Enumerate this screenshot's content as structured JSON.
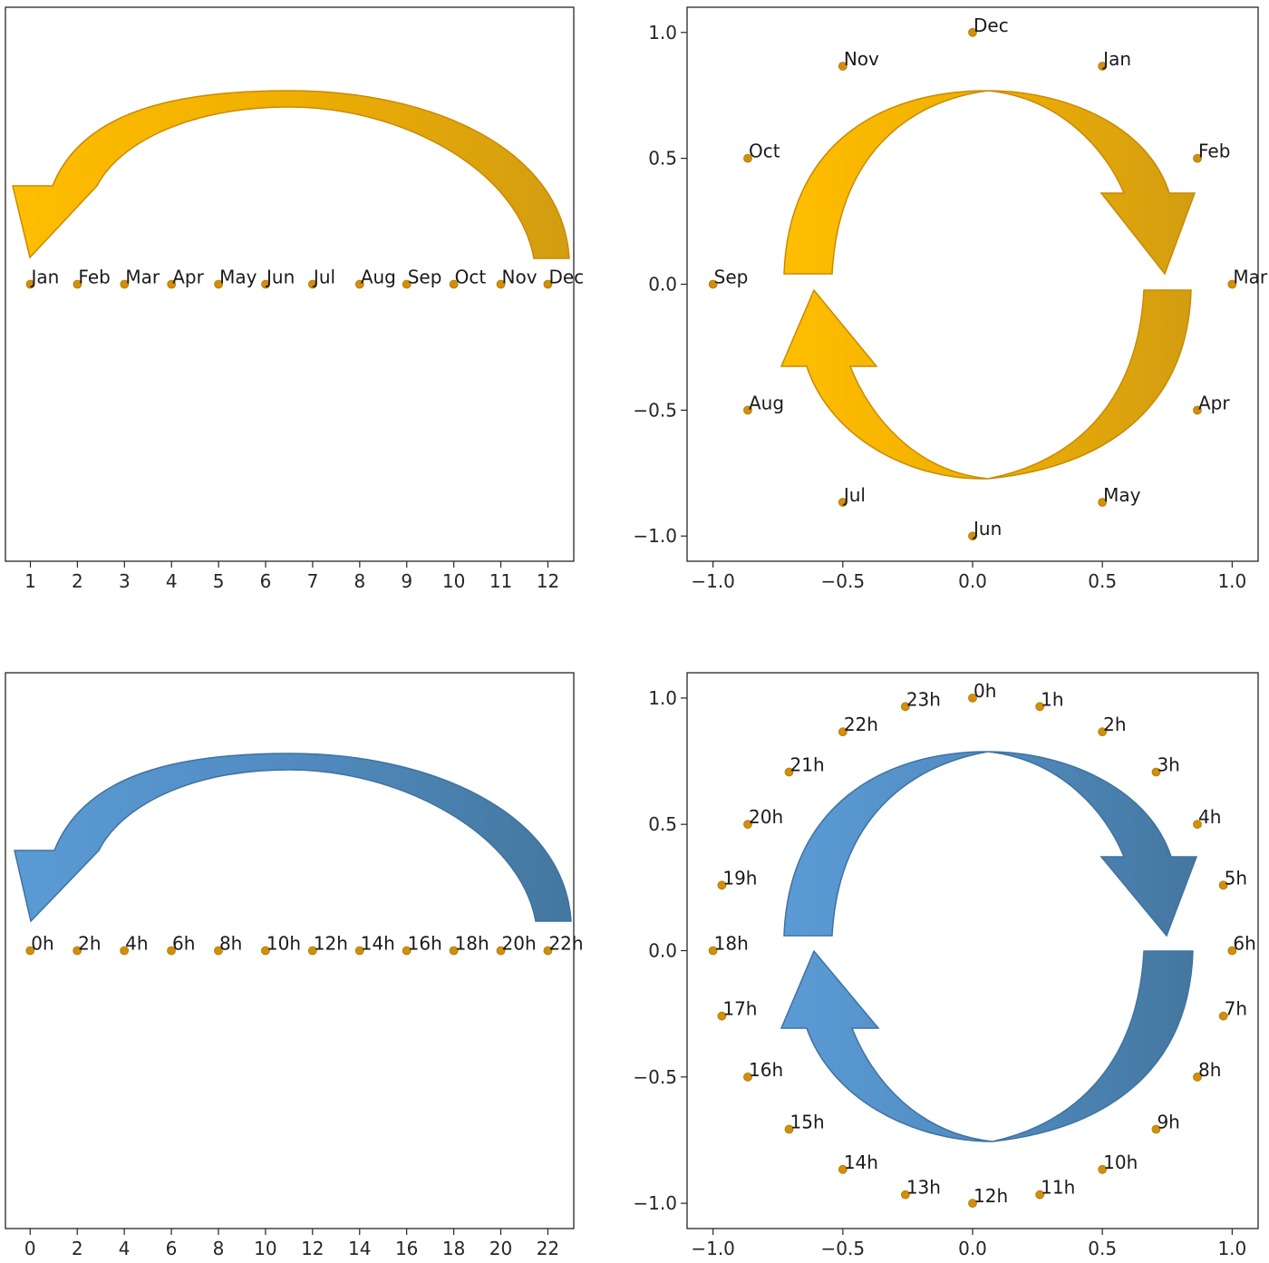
{
  "colors": {
    "point": "#d18f0b",
    "point_edge": "#b07a08",
    "gold_light": "#ffbe00",
    "gold_dark": "#d39d12",
    "gold_stroke": "#c98a00",
    "blue_light": "#5b9bd5",
    "blue_dark": "#44779f",
    "blue_stroke": "#3f72a0"
  },
  "chart_data": [
    {
      "type": "scatter",
      "panel": "top-left",
      "title": "",
      "xlabel": "",
      "ylabel": "",
      "xlim": [
        0.47,
        12.55
      ],
      "ylim": [
        -1.1,
        1.1
      ],
      "x_ticks": [
        "1",
        "2",
        "3",
        "4",
        "5",
        "6",
        "7",
        "8",
        "9",
        "10",
        "11",
        "12"
      ],
      "y_ticks": [],
      "points": [
        {
          "x": 1,
          "y": 0,
          "label": "Jan"
        },
        {
          "x": 2,
          "y": 0,
          "label": "Feb"
        },
        {
          "x": 3,
          "y": 0,
          "label": "Mar"
        },
        {
          "x": 4,
          "y": 0,
          "label": "Apr"
        },
        {
          "x": 5,
          "y": 0,
          "label": "May"
        },
        {
          "x": 6,
          "y": 0,
          "label": "Jun"
        },
        {
          "x": 7,
          "y": 0,
          "label": "Jul"
        },
        {
          "x": 8,
          "y": 0,
          "label": "Aug"
        },
        {
          "x": 9,
          "y": 0,
          "label": "Sep"
        },
        {
          "x": 10,
          "y": 0,
          "label": "Oct"
        },
        {
          "x": 11,
          "y": 0,
          "label": "Nov"
        },
        {
          "x": 12,
          "y": 0,
          "label": "Dec"
        }
      ],
      "annotation": {
        "shape": "curved-arrow",
        "direction": "right-to-left",
        "color": "gold"
      }
    },
    {
      "type": "scatter",
      "panel": "top-right",
      "title": "",
      "xlabel": "",
      "ylabel": "",
      "xlim": [
        -1.1,
        1.1
      ],
      "ylim": [
        -1.1,
        1.1
      ],
      "x_ticks": [
        "−1.0",
        "−0.5",
        "0.0",
        "0.5",
        "1.0"
      ],
      "y_ticks": [
        "−1.0",
        "−0.5",
        "0.0",
        "0.5",
        "1.0"
      ],
      "points": [
        {
          "x": 0.5,
          "y": 0.866,
          "label": "Jan"
        },
        {
          "x": 0.866,
          "y": 0.5,
          "label": "Feb"
        },
        {
          "x": 1.0,
          "y": 0.0,
          "label": "Mar"
        },
        {
          "x": 0.866,
          "y": -0.5,
          "label": "Apr"
        },
        {
          "x": 0.5,
          "y": -0.866,
          "label": "May"
        },
        {
          "x": 0.0,
          "y": -1.0,
          "label": "Jun"
        },
        {
          "x": -0.5,
          "y": -0.866,
          "label": "Jul"
        },
        {
          "x": -0.866,
          "y": -0.5,
          "label": "Aug"
        },
        {
          "x": -1.0,
          "y": 0.0,
          "label": "Sep"
        },
        {
          "x": -0.866,
          "y": 0.5,
          "label": "Oct"
        },
        {
          "x": -0.5,
          "y": 0.866,
          "label": "Nov"
        },
        {
          "x": 0.0,
          "y": 1.0,
          "label": "Dec"
        }
      ],
      "annotation": {
        "shape": "circular-arrows",
        "direction": "clockwise",
        "color": "gold"
      }
    },
    {
      "type": "scatter",
      "panel": "bottom-left",
      "title": "",
      "xlabel": "",
      "ylabel": "",
      "xlim": [
        -1.05,
        23.1
      ],
      "ylim": [
        -1.1,
        1.1
      ],
      "x_ticks": [
        "0",
        "2",
        "4",
        "6",
        "8",
        "10",
        "12",
        "14",
        "16",
        "18",
        "20",
        "22"
      ],
      "y_ticks": [],
      "points": [
        {
          "x": 0,
          "y": 0,
          "label": "0h"
        },
        {
          "x": 2,
          "y": 0,
          "label": "2h"
        },
        {
          "x": 4,
          "y": 0,
          "label": "4h"
        },
        {
          "x": 6,
          "y": 0,
          "label": "6h"
        },
        {
          "x": 8,
          "y": 0,
          "label": "8h"
        },
        {
          "x": 10,
          "y": 0,
          "label": "10h"
        },
        {
          "x": 12,
          "y": 0,
          "label": "12h"
        },
        {
          "x": 14,
          "y": 0,
          "label": "14h"
        },
        {
          "x": 16,
          "y": 0,
          "label": "16h"
        },
        {
          "x": 18,
          "y": 0,
          "label": "18h"
        },
        {
          "x": 20,
          "y": 0,
          "label": "20h"
        },
        {
          "x": 22,
          "y": 0,
          "label": "22h"
        }
      ],
      "annotation": {
        "shape": "curved-arrow",
        "direction": "right-to-left",
        "color": "blue"
      }
    },
    {
      "type": "scatter",
      "panel": "bottom-right",
      "title": "",
      "xlabel": "",
      "ylabel": "",
      "xlim": [
        -1.1,
        1.1
      ],
      "ylim": [
        -1.1,
        1.1
      ],
      "x_ticks": [
        "−1.0",
        "−0.5",
        "0.0",
        "0.5",
        "1.0"
      ],
      "y_ticks": [
        "−1.0",
        "−0.5",
        "0.0",
        "0.5",
        "1.0"
      ],
      "points": [
        {
          "x": 0.0,
          "y": 1.0,
          "label": "0h"
        },
        {
          "x": 0.259,
          "y": 0.966,
          "label": "1h"
        },
        {
          "x": 0.5,
          "y": 0.866,
          "label": "2h"
        },
        {
          "x": 0.707,
          "y": 0.707,
          "label": "3h"
        },
        {
          "x": 0.866,
          "y": 0.5,
          "label": "4h"
        },
        {
          "x": 0.966,
          "y": 0.259,
          "label": "5h"
        },
        {
          "x": 1.0,
          "y": 0.0,
          "label": "6h"
        },
        {
          "x": 0.966,
          "y": -0.259,
          "label": "7h"
        },
        {
          "x": 0.866,
          "y": -0.5,
          "label": "8h"
        },
        {
          "x": 0.707,
          "y": -0.707,
          "label": "9h"
        },
        {
          "x": 0.5,
          "y": -0.866,
          "label": "10h"
        },
        {
          "x": 0.259,
          "y": -0.966,
          "label": "11h"
        },
        {
          "x": 0.0,
          "y": -1.0,
          "label": "12h"
        },
        {
          "x": -0.259,
          "y": -0.966,
          "label": "13h"
        },
        {
          "x": -0.5,
          "y": -0.866,
          "label": "14h"
        },
        {
          "x": -0.707,
          "y": -0.707,
          "label": "15h"
        },
        {
          "x": -0.866,
          "y": -0.5,
          "label": "16h"
        },
        {
          "x": -0.966,
          "y": -0.259,
          "label": "17h"
        },
        {
          "x": -1.0,
          "y": 0.0,
          "label": "18h"
        },
        {
          "x": -0.966,
          "y": 0.259,
          "label": "19h"
        },
        {
          "x": -0.866,
          "y": 0.5,
          "label": "20h"
        },
        {
          "x": -0.707,
          "y": 0.707,
          "label": "21h"
        },
        {
          "x": -0.5,
          "y": 0.866,
          "label": "22h"
        },
        {
          "x": -0.259,
          "y": 0.966,
          "label": "23h"
        }
      ],
      "annotation": {
        "shape": "circular-arrows",
        "direction": "clockwise",
        "color": "blue"
      }
    }
  ]
}
